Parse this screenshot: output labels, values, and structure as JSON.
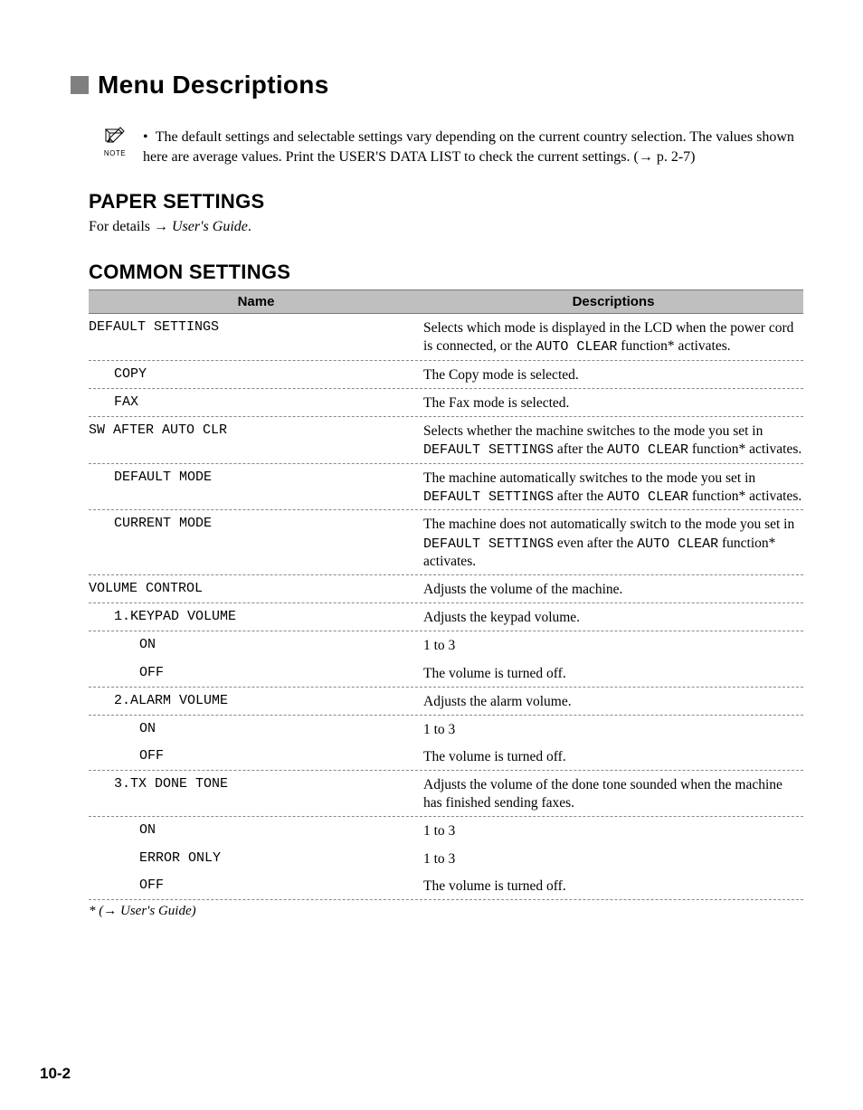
{
  "colors": {
    "bullet_gray": "#808080",
    "header_bg": "#bfbfbf",
    "header_border": "#7a7a7a",
    "dash_border": "#888888",
    "text": "#000000",
    "bg": "#ffffff"
  },
  "typography": {
    "heading_family": "Arial",
    "body_family": "Times New Roman",
    "mono_family": "Courier New",
    "h1_size": 28,
    "h2_size": 22,
    "body_size": 16,
    "table_header_size": 15
  },
  "heading_main": "Menu Descriptions",
  "note_label": "NOTE",
  "note_text": "The default settings and selectable settings vary depending on the current country selection. The values shown here are average values. Print the USER'S DATA LIST to check the current settings. (→ p. 2-7)",
  "section_paper": {
    "title": "PAPER SETTINGS",
    "detail_prefix": "For details → ",
    "detail_italic": "User's Guide",
    "detail_suffix": "."
  },
  "section_common": {
    "title": "COMMON SETTINGS",
    "header_name": "Name",
    "header_desc": "Descriptions",
    "rows": [
      {
        "name": "DEFAULT SETTINGS",
        "indent": 0,
        "desc_parts": [
          "Selects which mode is displayed in the LCD when the power cord is connected, or the ",
          "AUTO CLEAR",
          " function* activates."
        ],
        "mono_idx": [
          1
        ]
      },
      {
        "name": "COPY",
        "indent": 1,
        "desc": "The Copy mode is selected."
      },
      {
        "name": "FAX",
        "indent": 1,
        "desc": "The Fax mode is selected."
      },
      {
        "name": "SW AFTER AUTO CLR",
        "indent": 0,
        "desc_parts": [
          "Selects whether the machine switches to the mode you set in ",
          "DEFAULT SETTINGS",
          " after the ",
          "AUTO CLEAR",
          " function* activates."
        ],
        "mono_idx": [
          1,
          3
        ]
      },
      {
        "name": "DEFAULT MODE",
        "indent": 1,
        "desc_parts": [
          "The machine automatically switches to the mode you set in ",
          "DEFAULT SETTINGS",
          " after the ",
          "AUTO CLEAR",
          " function* activates."
        ],
        "mono_idx": [
          1,
          3
        ]
      },
      {
        "name": "CURRENT MODE",
        "indent": 1,
        "desc_parts": [
          "The machine does not automatically switch to the mode you set in ",
          "DEFAULT SETTINGS",
          " even after the ",
          "AUTO CLEAR",
          " function* activates."
        ],
        "mono_idx": [
          1,
          3
        ]
      },
      {
        "name": "VOLUME CONTROL",
        "indent": 0,
        "desc": "Adjusts the volume of the machine."
      },
      {
        "name": "1.KEYPAD VOLUME",
        "indent": 1,
        "desc": "Adjusts the keypad volume."
      },
      {
        "name": "ON",
        "indent": 2,
        "desc": "1 to 3",
        "no_border": true
      },
      {
        "name": "OFF",
        "indent": 2,
        "desc": "The volume is turned off."
      },
      {
        "name": "2.ALARM VOLUME",
        "indent": 1,
        "desc": "Adjusts the alarm volume."
      },
      {
        "name": "ON",
        "indent": 2,
        "desc": "1 to 3",
        "no_border": true
      },
      {
        "name": "OFF",
        "indent": 2,
        "desc": "The volume is turned off."
      },
      {
        "name": "3.TX DONE TONE",
        "indent": 1,
        "desc": "Adjusts the volume of the done tone sounded when the machine has finished sending faxes."
      },
      {
        "name": "ON",
        "indent": 2,
        "desc": "1 to 3",
        "no_border": true
      },
      {
        "name": "ERROR ONLY",
        "indent": 2,
        "desc": "1 to 3",
        "no_border": true
      },
      {
        "name": "OFF",
        "indent": 2,
        "desc": "The volume is turned off."
      }
    ]
  },
  "footnote_prefix": "* (→ ",
  "footnote_italic": "User's Guide",
  "footnote_suffix": ")",
  "page_number": "10-2"
}
